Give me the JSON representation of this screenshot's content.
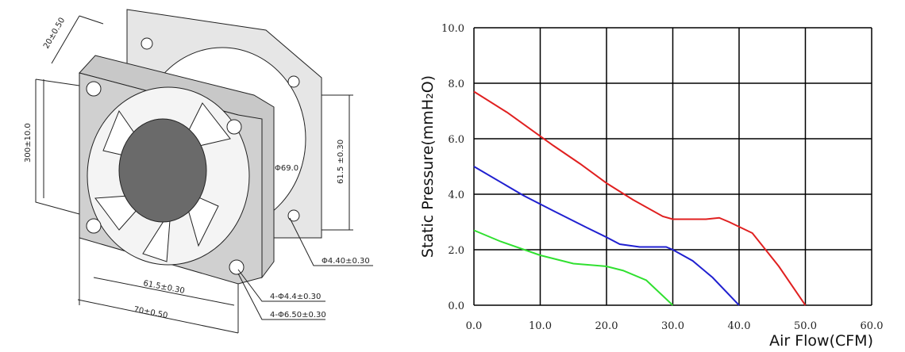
{
  "drawing": {
    "labels": [
      "20±0.50",
      "300±10.0",
      "61.5 ±0.30",
      "Φ69.0",
      "Φ4.40±0.30",
      "61.5±0.30",
      "70±0.50",
      "4-Φ4.4±0.30",
      "4-Φ6.50±0.30"
    ]
  },
  "chart_data": {
    "type": "line",
    "x_label": "Air Flow(CFM)",
    "y_label": "Static Pressure(mmH₂O)",
    "xlim": [
      0,
      60
    ],
    "ylim": [
      0,
      10
    ],
    "xticks": [
      {
        "value": 0,
        "label": "0.0"
      },
      {
        "value": 10,
        "label": "10.0"
      },
      {
        "value": 20,
        "label": "20.0"
      },
      {
        "value": 30,
        "label": "30.0"
      },
      {
        "value": 40,
        "label": "40.0"
      },
      {
        "value": 50,
        "label": "50.0"
      },
      {
        "value": 60,
        "label": "60.0"
      }
    ],
    "yticks": [
      {
        "value": 0,
        "label": "0.0"
      },
      {
        "value": 2,
        "label": "2.0"
      },
      {
        "value": 4,
        "label": "4.0"
      },
      {
        "value": 6,
        "label": "6.0"
      },
      {
        "value": 8,
        "label": "8.0"
      },
      {
        "value": 10,
        "label": "10.0"
      }
    ],
    "grid": true,
    "series": [
      {
        "color": "#e02020",
        "x": [
          0,
          5,
          12,
          16,
          20,
          24,
          28.5,
          30,
          35,
          37,
          38.5,
          42,
          46,
          50
        ],
        "values": [
          7.7,
          6.95,
          5.75,
          5.1,
          4.4,
          3.8,
          3.2,
          3.1,
          3.1,
          3.15,
          3.0,
          2.6,
          1.4,
          0
        ]
      },
      {
        "color": "#2020d0",
        "x": [
          0,
          7.5,
          12,
          17,
          20,
          22,
          25,
          29,
          30,
          33,
          36,
          40
        ],
        "values": [
          5.0,
          3.95,
          3.4,
          2.8,
          2.45,
          2.2,
          2.1,
          2.1,
          2.0,
          1.6,
          1.0,
          0
        ]
      },
      {
        "color": "#30e030",
        "x": [
          0,
          4,
          10,
          15,
          20,
          22.5,
          26,
          30
        ],
        "values": [
          2.7,
          2.3,
          1.8,
          1.5,
          1.4,
          1.25,
          0.9,
          0
        ]
      }
    ]
  }
}
